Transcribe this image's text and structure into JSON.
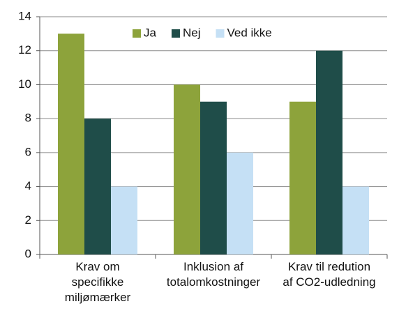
{
  "chart_data": {
    "type": "bar",
    "categories": [
      "Krav om\nspecifikke\nmiljømærker",
      "Inklusion af\ntotalomkostninger",
      "Krav til redution\naf CO2-udledning"
    ],
    "series": [
      {
        "name": "Ja",
        "color": "#8da33b",
        "values": [
          13,
          10,
          9
        ]
      },
      {
        "name": "Nej",
        "color": "#1f4d49",
        "values": [
          8,
          9,
          12
        ]
      },
      {
        "name": "Ved ikke",
        "color": "#c5e0f5",
        "values": [
          4,
          6,
          4
        ]
      }
    ],
    "ylim": [
      0,
      14
    ],
    "yticks": [
      0,
      2,
      4,
      6,
      8,
      10,
      12,
      14
    ],
    "grid": true,
    "legend": "top"
  }
}
